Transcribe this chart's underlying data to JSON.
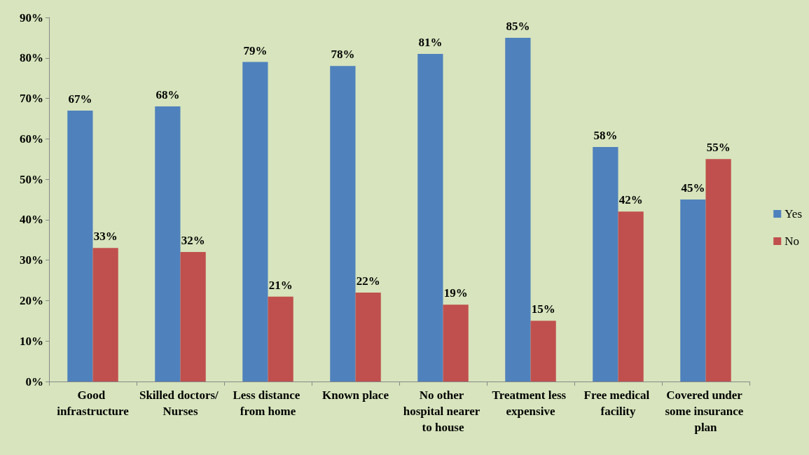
{
  "chart_data": {
    "type": "bar",
    "categories": [
      "Good infrastructure",
      "Skilled doctors/ Nurses",
      "Less distance from home",
      "Known place",
      "No other hospital nearer to house",
      "Treatment less expensive",
      "Free medical facility",
      "Covered under some insurance plan"
    ],
    "series": [
      {
        "name": "Yes",
        "color": "#4f81bd",
        "values": [
          67,
          68,
          79,
          78,
          81,
          85,
          58,
          45
        ],
        "value_labels": [
          "67%",
          "68%",
          "79%",
          "78%",
          "81%",
          "85%",
          "58%",
          "45%"
        ]
      },
      {
        "name": "No",
        "color": "#c0504d",
        "values": [
          33,
          32,
          21,
          22,
          19,
          15,
          42,
          55
        ],
        "value_labels": [
          "33%",
          "32%",
          "21%",
          "22%",
          "19%",
          "15%",
          "42%",
          "55%"
        ]
      }
    ],
    "ylim": [
      0,
      90
    ],
    "yticks": [
      {
        "value": 0,
        "label": "0%"
      },
      {
        "value": 10,
        "label": "10%"
      },
      {
        "value": 20,
        "label": "20%"
      },
      {
        "value": 30,
        "label": "30%"
      },
      {
        "value": 40,
        "label": "40%"
      },
      {
        "value": 50,
        "label": "50%"
      },
      {
        "value": 60,
        "label": "60%"
      },
      {
        "value": 70,
        "label": "70%"
      },
      {
        "value": 80,
        "label": "80%"
      },
      {
        "value": 90,
        "label": "90%"
      }
    ],
    "grid": false,
    "legend": "right"
  }
}
